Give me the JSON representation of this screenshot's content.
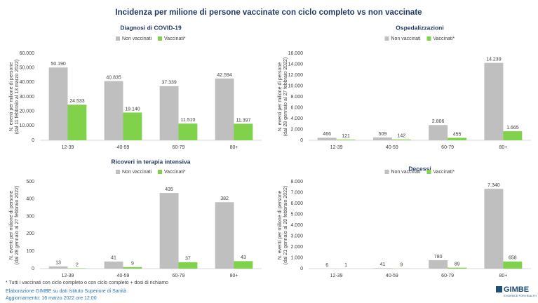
{
  "title": "Incidenza per milione di persone vaccinate con ciclo completo vs non vaccinate",
  "chart_data": [
    {
      "type": "bar",
      "title": "Diagnosi di COVID-19",
      "ylabel": [
        "N. eventi per milione di persone",
        "(dal 11  febbraio al 13  marzo 2022)"
      ],
      "categories": [
        "12-39",
        "40-59",
        "60-79",
        "80+"
      ],
      "series": [
        {
          "name": "Non vaccinati",
          "color": "#bfbfbf",
          "values": [
            50190,
            40835,
            37339,
            42594
          ],
          "value_labels": [
            "50.190",
            "40.835",
            "37.339",
            "42.594"
          ]
        },
        {
          "name": "Vaccinati*",
          "color": "#7fd24a",
          "values": [
            24533,
            19140,
            11510,
            11397
          ],
          "value_labels": [
            "24.533",
            "19.140",
            "11.510",
            "11.397"
          ]
        }
      ],
      "ylim": [
        0,
        60000
      ],
      "yticks": [
        0,
        {
          "value": 10000,
          "label": "10.000"
        },
        {
          "value": 20000,
          "label": "20.000"
        },
        {
          "value": 30000,
          "label": "30.000"
        },
        {
          "value": 40000,
          "label": "40.000"
        },
        {
          "value": 50000,
          "label": "50.000"
        },
        {
          "value": 60000,
          "label": "60.000"
        }
      ],
      "grid": false,
      "legend": "top"
    },
    {
      "type": "bar",
      "title": "Ospedalizzazioni",
      "ylabel": [
        "N. eventi per milione di persone",
        "(dal 28  gennaio al 27  febbraio 2022)"
      ],
      "categories": [
        "12-39",
        "40-59",
        "60-79",
        "80+"
      ],
      "series": [
        {
          "name": "Non vaccinati",
          "color": "#bfbfbf",
          "values": [
            466,
            509,
            2806,
            14239
          ],
          "value_labels": [
            "466",
            "509",
            "2.806",
            "14.239"
          ]
        },
        {
          "name": "Vaccinati*",
          "color": "#7fd24a",
          "values": [
            121,
            142,
            455,
            1665
          ],
          "value_labels": [
            "121",
            "142",
            "455",
            "1.665"
          ]
        }
      ],
      "ylim": [
        0,
        16000
      ],
      "yticks": [
        0,
        {
          "value": 2000,
          "label": "2.000"
        },
        {
          "value": 4000,
          "label": "4.000"
        },
        {
          "value": 6000,
          "label": "6.000"
        },
        {
          "value": 8000,
          "label": "8.000"
        },
        {
          "value": 10000,
          "label": "10.000"
        },
        {
          "value": 12000,
          "label": "12.000"
        },
        {
          "value": 14000,
          "label": "14.000"
        },
        {
          "value": 16000,
          "label": "16.000"
        }
      ],
      "grid": false,
      "legend": "top"
    },
    {
      "type": "bar",
      "title": "Ricoveri in terapia intensiva",
      "ylabel": [
        "N. eventi per milione di persone",
        "(dal 28  gennaio al 27  febbraio 2022)"
      ],
      "categories": [
        "12-39",
        "40-59",
        "60-79",
        "80+"
      ],
      "series": [
        {
          "name": "Non vaccinati",
          "color": "#bfbfbf",
          "values": [
            13,
            41,
            435,
            382
          ]
        },
        {
          "name": "Vaccinati*",
          "color": "#7fd24a",
          "values": [
            2,
            9,
            37,
            43
          ]
        }
      ],
      "ylim": [
        0,
        500
      ],
      "yticks": [
        0,
        100,
        200,
        300,
        400,
        500
      ],
      "grid": false,
      "legend": "top"
    },
    {
      "type": "bar",
      "title": "Decessi",
      "ylabel": [
        "N. eventi per milione di persone",
        "(dal 21  gennaio al 20  febbraio 2022)"
      ],
      "categories": [
        "12-39",
        "40-59",
        "60-79",
        "80+"
      ],
      "series": [
        {
          "name": "Non vaccinati",
          "color": "#bfbfbf",
          "values": [
            6,
            41,
            780,
            7340
          ],
          "value_labels": [
            "6",
            "41",
            "780",
            "7.340"
          ]
        },
        {
          "name": "Vaccinati*",
          "color": "#7fd24a",
          "values": [
            1,
            9,
            89,
            658
          ]
        }
      ],
      "ylim": [
        0,
        8000
      ],
      "yticks": [
        0,
        {
          "value": 1000,
          "label": "1.000"
        },
        {
          "value": 2000,
          "label": "2.000"
        },
        {
          "value": 3000,
          "label": "3.000"
        },
        {
          "value": 4000,
          "label": "4.000"
        },
        {
          "value": 5000,
          "label": "5.000"
        },
        {
          "value": 6000,
          "label": "6.000"
        },
        {
          "value": 7000,
          "label": "7.000"
        },
        {
          "value": 8000,
          "label": "8.000"
        }
      ],
      "grid": false,
      "legend": "top"
    }
  ],
  "footnote": "* Tutti i vaccinati con ciclo completo o con ciclo completo +  dosi di richiamo",
  "source": "Elaborazione GIMBE su dati Istituto Superiore di Sanità",
  "updated": "Aggiornamento: 16 marzo 2022 ore 12:00",
  "logo": {
    "name": "GIMBE",
    "tagline": "EVIDENCE FOR HEALTH"
  }
}
